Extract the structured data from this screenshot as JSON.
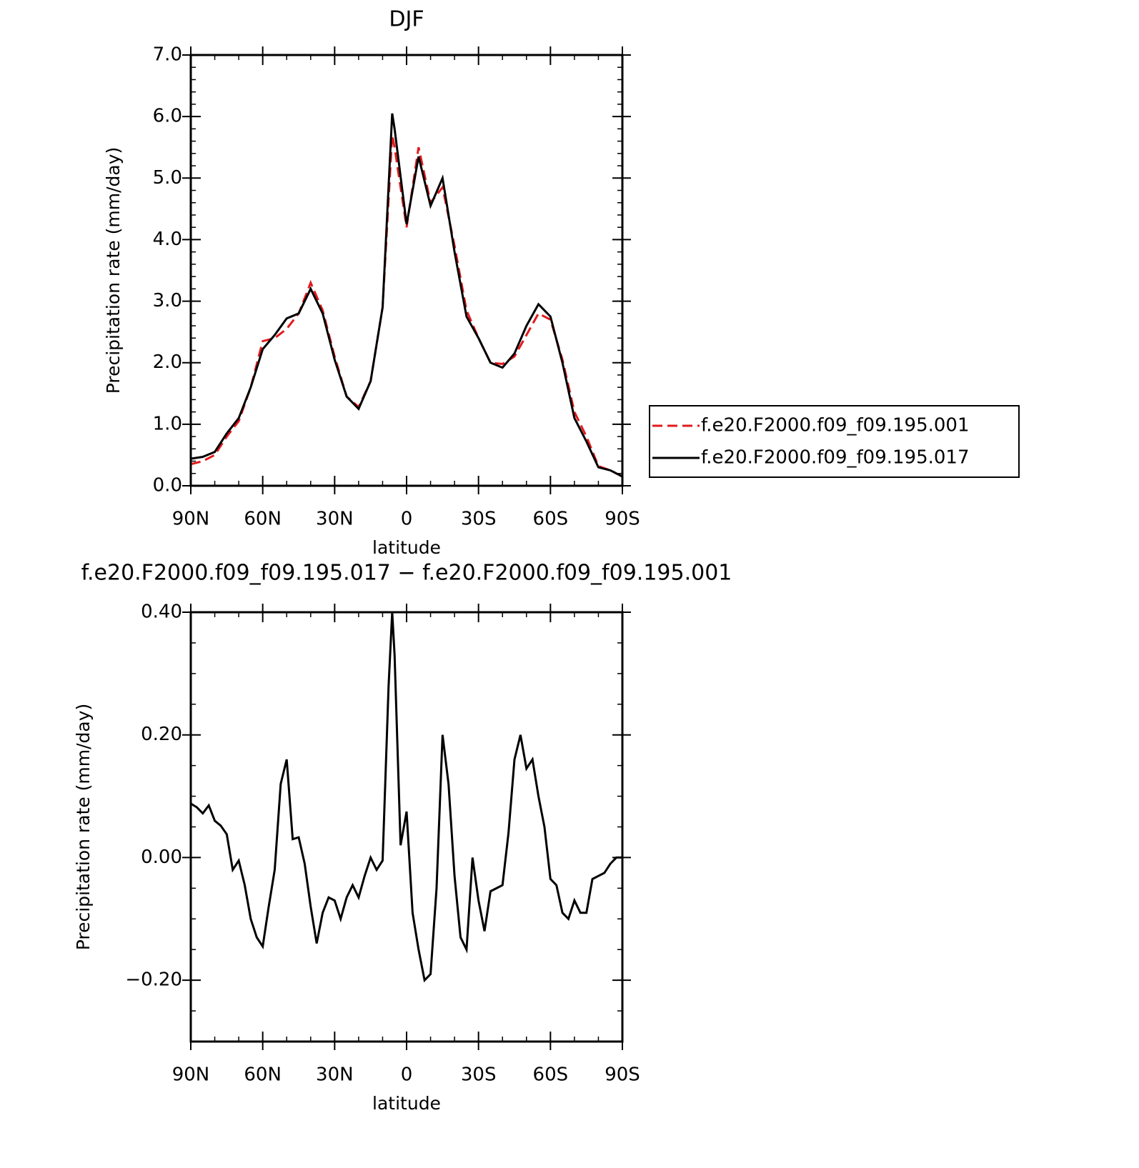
{
  "chart_data": [
    {
      "type": "line",
      "title": "DJF",
      "xlabel": "latitude",
      "ylabel": "Precipitation rate (mm/day)",
      "x": [
        90,
        85,
        80,
        75,
        70,
        65,
        60,
        55,
        50,
        45,
        40,
        35,
        30,
        25,
        20,
        15,
        10,
        6,
        5,
        0,
        -5,
        -10,
        -15,
        -20,
        -25,
        -30,
        -35,
        -40,
        -45,
        -50,
        -55,
        -60,
        -65,
        -70,
        -75,
        -80,
        -85,
        -90
      ],
      "series": [
        {
          "name": "f.e20.F2000.f09_f09.195.001",
          "color": "#e31a1c",
          "linestyle": "dashed",
          "values": [
            0.35,
            0.4,
            0.5,
            0.8,
            1.05,
            1.6,
            2.35,
            2.4,
            2.55,
            2.8,
            3.3,
            2.85,
            2.1,
            1.45,
            1.28,
            1.7,
            2.9,
            5.7,
            5.5,
            4.2,
            5.5,
            4.6,
            4.85,
            3.9,
            2.85,
            2.4,
            2.0,
            1.98,
            2.1,
            2.45,
            2.8,
            2.7,
            2.05,
            1.2,
            0.8,
            0.32,
            0.25,
            0.15
          ]
        },
        {
          "name": "f.e20.F2000.f09_f09.195.017",
          "color": "#000000",
          "linestyle": "solid",
          "values": [
            0.44,
            0.47,
            0.55,
            0.85,
            1.1,
            1.6,
            2.22,
            2.45,
            2.72,
            2.8,
            3.2,
            2.8,
            2.05,
            1.45,
            1.25,
            1.7,
            2.9,
            6.05,
            5.8,
            4.25,
            5.35,
            4.55,
            5.0,
            3.8,
            2.75,
            2.4,
            2.0,
            1.92,
            2.15,
            2.6,
            2.95,
            2.75,
            2.0,
            1.1,
            0.72,
            0.3,
            0.25,
            0.15
          ]
        }
      ],
      "xlim": [
        90,
        -90
      ],
      "xticks": [
        {
          "value": 90,
          "label": "90N"
        },
        {
          "value": 60,
          "label": "60N"
        },
        {
          "value": 30,
          "label": "30N"
        },
        0,
        {
          "value": -30,
          "label": "30S"
        },
        {
          "value": -60,
          "label": "60S"
        },
        {
          "value": -90,
          "label": "90S"
        }
      ],
      "ylim": [
        0,
        7
      ],
      "yticks": [
        {
          "value": 0,
          "label": "0.0"
        },
        {
          "value": 1,
          "label": "1.0"
        },
        {
          "value": 2,
          "label": "2.0"
        },
        {
          "value": 3,
          "label": "3.0"
        },
        {
          "value": 4,
          "label": "4.0"
        },
        {
          "value": 5,
          "label": "5.0"
        },
        {
          "value": 6,
          "label": "6.0"
        },
        {
          "value": 7,
          "label": "7.0"
        }
      ],
      "legend": "right"
    },
    {
      "type": "line",
      "title": "f.e20.F2000.f09_f09.195.017 − f.e20.F2000.f09_f09.195.001",
      "xlabel": "latitude",
      "ylabel": "Precipitation rate (mm/day)",
      "x": [
        90,
        87.5,
        85,
        82.5,
        80,
        77.5,
        75,
        72.5,
        70,
        67.5,
        65,
        62.5,
        60,
        57.5,
        55,
        52.5,
        50,
        47.5,
        45,
        42.5,
        40,
        37.5,
        35,
        32.5,
        30,
        27.5,
        25,
        22.5,
        20,
        17.5,
        15,
        12.5,
        10,
        7.5,
        6,
        5,
        2.5,
        0,
        -2.5,
        -5,
        -7.5,
        -10,
        -12.5,
        -15,
        -17.5,
        -20,
        -22.5,
        -25,
        -27.5,
        -30,
        -32.5,
        -35,
        -37.5,
        -40,
        -42.5,
        -45,
        -47.5,
        -50,
        -52.5,
        -55,
        -57.5,
        -60,
        -62.5,
        -65,
        -67.5,
        -70,
        -72.5,
        -75,
        -77.5,
        -80,
        -82.5,
        -85,
        -87.5,
        -90
      ],
      "series": [
        {
          "color": "#000000",
          "linestyle": "solid",
          "values": [
            0.088,
            0.082,
            0.072,
            0.085,
            0.06,
            0.052,
            0.038,
            -0.02,
            -0.005,
            -0.045,
            -0.1,
            -0.13,
            -0.145,
            -0.08,
            -0.02,
            0.12,
            0.16,
            0.03,
            0.033,
            -0.01,
            -0.08,
            -0.14,
            -0.09,
            -0.065,
            -0.07,
            -0.1,
            -0.065,
            -0.045,
            -0.065,
            -0.03,
            0.0,
            -0.02,
            -0.005,
            0.28,
            0.4,
            0.33,
            0.02,
            0.075,
            -0.09,
            -0.15,
            -0.2,
            -0.19,
            -0.05,
            0.2,
            0.12,
            -0.03,
            -0.13,
            -0.15,
            0.0,
            -0.07,
            -0.12,
            -0.055,
            -0.05,
            -0.045,
            0.04,
            0.16,
            0.2,
            0.145,
            0.16,
            0.1,
            0.05,
            -0.035,
            -0.045,
            -0.09,
            -0.1,
            -0.07,
            -0.09,
            -0.09,
            -0.035,
            -0.03,
            -0.025,
            -0.01,
            0.0,
            0.0
          ]
        }
      ],
      "xlim": [
        90,
        -90
      ],
      "xticks": [
        {
          "value": 90,
          "label": "90N"
        },
        {
          "value": 60,
          "label": "60N"
        },
        {
          "value": 30,
          "label": "30N"
        },
        0,
        {
          "value": -30,
          "label": "30S"
        },
        {
          "value": -60,
          "label": "60S"
        },
        {
          "value": -90,
          "label": "90S"
        }
      ],
      "ylim": [
        -0.3,
        0.4
      ],
      "yticks": [
        {
          "value": -0.2,
          "label": "−0.20"
        },
        {
          "value": 0,
          "label": "0.00"
        },
        {
          "value": 0.2,
          "label": "0.20"
        },
        {
          "value": 0.4,
          "label": "0.40"
        }
      ]
    }
  ]
}
